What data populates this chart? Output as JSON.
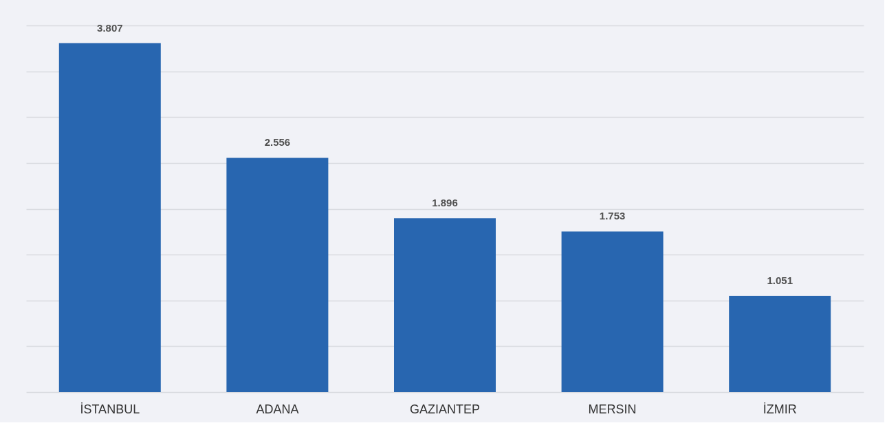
{
  "chart_data": {
    "type": "bar",
    "categories": [
      "İSTANBUL",
      "ADANA",
      "GAZIANTEP",
      "MERSIN",
      "İZMIR"
    ],
    "values": [
      3.807,
      2.556,
      1.896,
      1.753,
      1.051
    ],
    "color": "#2866b0",
    "ylim": [
      0,
      4
    ],
    "yticks": [
      {
        "value": 0,
        "label": null
      },
      {
        "value": 0.5,
        "label": null
      },
      {
        "value": 1,
        "label": null
      },
      {
        "value": 1.5,
        "label": null
      },
      {
        "value": 2,
        "label": null
      },
      {
        "value": 2.5,
        "label": null
      },
      {
        "value": 3,
        "label": null
      },
      {
        "value": 3.5,
        "label": null
      },
      {
        "value": 4,
        "label": null
      }
    ],
    "grid": "y",
    "tick_labels": "x",
    "data_labels": true
  }
}
